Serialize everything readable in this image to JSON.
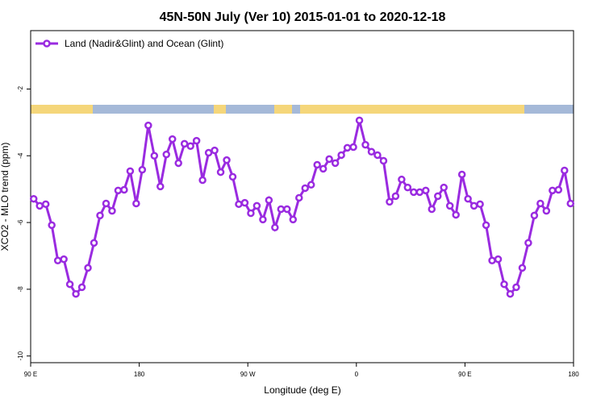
{
  "chart_data": {
    "type": "line",
    "title": "45N-50N July (Ver 10)   2015-01-01 to 2020-12-18",
    "x_label": "Longitude (deg E)",
    "y_label": "XCO2 - MLO trend (ppm)",
    "xlim": [
      90,
      540
    ],
    "xticks": [
      {
        "value": 90,
        "label": "90 E"
      },
      180,
      {
        "value": 270,
        "label": "90 W"
      },
      {
        "value": 360,
        "label": "0"
      },
      {
        "value": 450,
        "label": "90 E"
      },
      {
        "value": 540,
        "label": "180"
      }
    ],
    "ylim": [
      -10.2,
      -0.25
    ],
    "yticks": [
      -10,
      -8,
      -6,
      -4,
      -2
    ],
    "legend": "top-left",
    "x": [
      92.5,
      97.5,
      102.5,
      107.5,
      112.5,
      117.5,
      122.5,
      127.5,
      132.5,
      137.5,
      142.5,
      147.5,
      152.5,
      157.5,
      162.5,
      167.5,
      172.5,
      177.5,
      182.5,
      187.5,
      192.5,
      197.5,
      202.5,
      207.5,
      212.5,
      217.5,
      222.5,
      227.5,
      232.5,
      237.5,
      242.5,
      247.5,
      252.5,
      257.5,
      262.5,
      267.5,
      272.5,
      277.5,
      282.5,
      287.5,
      292.5,
      297.5,
      302.5,
      307.5,
      312.5,
      317.5,
      322.5,
      327.5,
      332.5,
      337.5,
      342.5,
      347.5,
      352.5,
      357.5,
      362.5,
      367.5,
      372.5,
      377.5,
      382.5,
      387.5,
      392.5,
      397.5,
      402.5,
      407.5,
      412.5,
      417.5,
      422.5,
      427.5,
      432.5,
      437.5,
      442.5,
      447.5,
      452.5,
      457.5,
      462.5,
      467.5,
      472.5,
      477.5,
      482.5,
      487.5,
      492.5,
      497.5,
      502.5,
      507.5,
      512.5,
      517.5,
      522.5,
      527.5,
      532.5,
      537.5
    ],
    "series": [
      {
        "name": "Land (Nadir&Glint) and Ocean (Glint)",
        "color": "#9a2be0",
        "values": [
          -5.29,
          -5.5,
          -5.45,
          -6.08,
          -7.14,
          -7.1,
          -7.85,
          -8.14,
          -7.94,
          -7.36,
          -6.61,
          -5.79,
          -5.43,
          -5.65,
          -5.04,
          -5.02,
          -4.46,
          -5.43,
          -4.42,
          -3.09,
          -4.0,
          -4.92,
          -3.96,
          -3.5,
          -4.22,
          -3.64,
          -3.71,
          -3.55,
          -4.73,
          -3.91,
          -3.84,
          -4.49,
          -4.13,
          -4.63,
          -5.45,
          -5.41,
          -5.72,
          -5.5,
          -5.91,
          -5.33,
          -6.15,
          -5.6,
          -5.6,
          -5.91,
          -5.26,
          -4.97,
          -4.87,
          -4.27,
          -4.39,
          -4.1,
          -4.22,
          -3.98,
          -3.76,
          -3.74,
          -2.94,
          -3.67,
          -3.88,
          -3.98,
          -4.15,
          -5.38,
          -5.21,
          -4.71,
          -4.95,
          -5.09,
          -5.09,
          -5.04,
          -5.6,
          -5.21,
          -4.95,
          -5.5,
          -5.77,
          -4.56,
          -5.29,
          -5.5,
          -5.45,
          -6.08,
          -7.14,
          -7.1,
          -7.85,
          -8.14,
          -7.94,
          -7.36,
          -6.61,
          -5.79,
          -5.43,
          -5.65,
          -5.04,
          -5.02,
          -4.44,
          -5.43
        ]
      }
    ]
  }
}
